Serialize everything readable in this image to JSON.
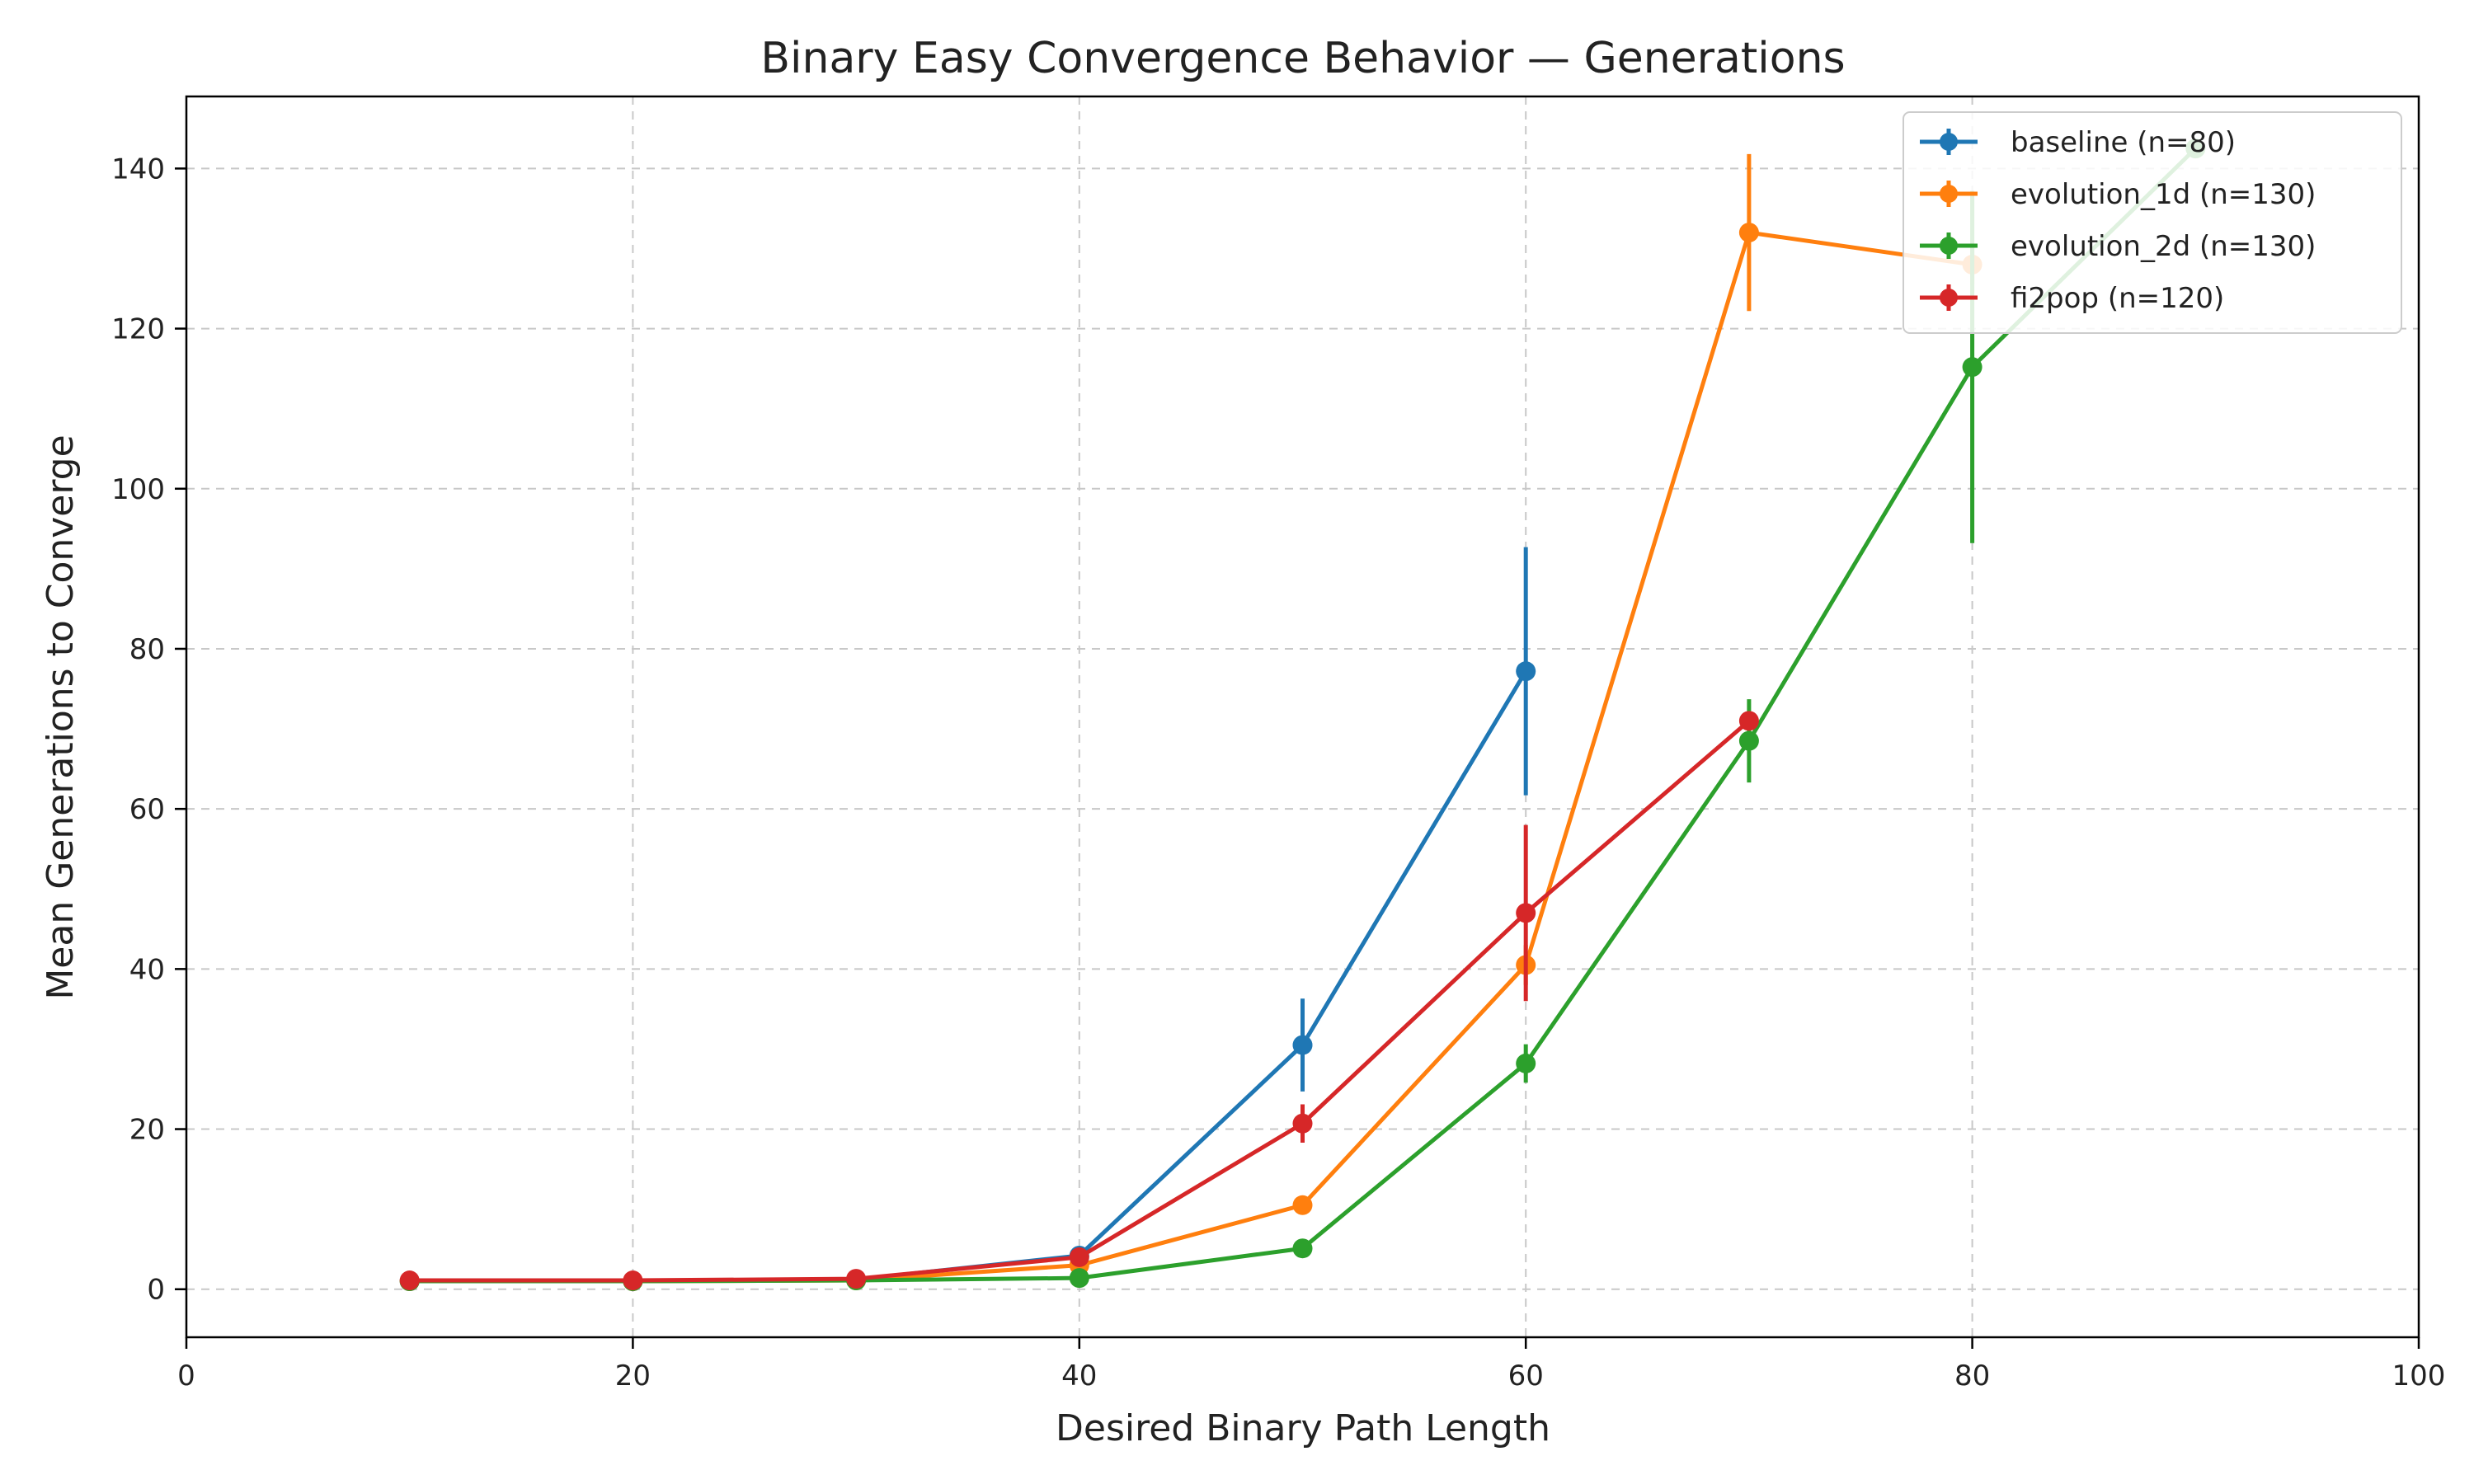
{
  "chart_data": {
    "type": "line",
    "title": "Binary Easy Convergence Behavior — Generations",
    "xlabel": "Desired Binary Path Length",
    "ylabel": "Mean Generations to Converge",
    "xlim": [
      0,
      100
    ],
    "ylim": [
      -6,
      149
    ],
    "xticks": [
      "0",
      "20",
      "40",
      "60",
      "80",
      "100"
    ],
    "yticks": [
      "0",
      "20",
      "40",
      "60",
      "80",
      "100",
      "120",
      "140"
    ],
    "grid": true,
    "legend_position": "top-right",
    "series": [
      {
        "name": "baseline (n=80)",
        "color": "#1f77b4",
        "x": [
          10,
          20,
          30,
          40,
          50,
          60
        ],
        "y": [
          1.0,
          1.0,
          1.2,
          4.2,
          30.5,
          77.2
        ],
        "err": [
          0.1,
          0.1,
          0.2,
          0.6,
          5.8,
          15.5
        ]
      },
      {
        "name": "evolution_1d (n=130)",
        "color": "#ff7f0e",
        "x": [
          10,
          20,
          30,
          40,
          50,
          60,
          70,
          80
        ],
        "y": [
          1.0,
          1.0,
          1.1,
          3.0,
          10.5,
          40.5,
          132.0,
          128.0
        ],
        "err": [
          0.1,
          0.1,
          0.1,
          0.4,
          1.0,
          2.5,
          9.8,
          2.5
        ]
      },
      {
        "name": "evolution_2d (n=130)",
        "color": "#2ca02c",
        "x": [
          10,
          20,
          30,
          40,
          50,
          60,
          70,
          80,
          90
        ],
        "y": [
          1.0,
          1.0,
          1.1,
          1.4,
          5.1,
          28.2,
          68.5,
          115.2,
          142.5
        ],
        "err": [
          0.1,
          0.1,
          0.1,
          0.2,
          0.4,
          2.4,
          5.2,
          22.0,
          1.0
        ]
      },
      {
        "name": "fi2pop (n=120)",
        "color": "#d62728",
        "x": [
          10,
          20,
          30,
          40,
          50,
          60,
          70
        ],
        "y": [
          1.1,
          1.1,
          1.3,
          4.0,
          20.7,
          47.0,
          71.0
        ],
        "err": [
          0.1,
          0.1,
          0.2,
          0.5,
          2.4,
          11.0,
          1.2
        ]
      }
    ]
  }
}
